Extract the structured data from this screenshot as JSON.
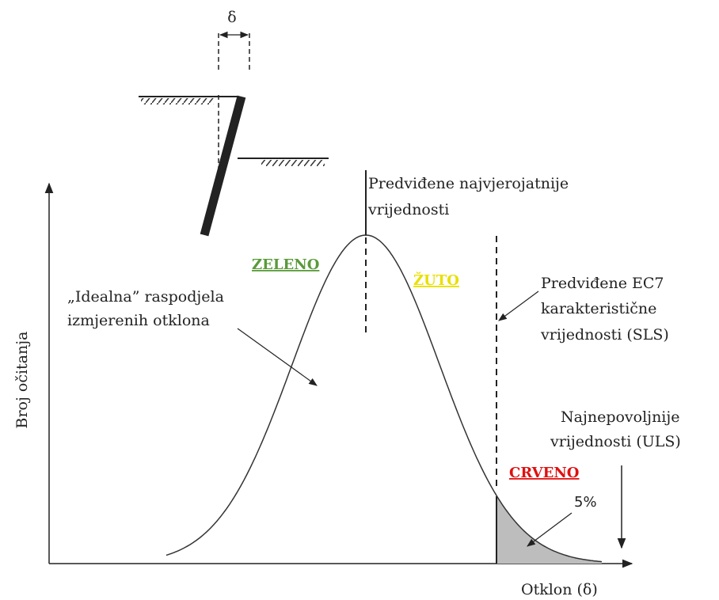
{
  "wall": {
    "delta": "δ"
  },
  "most_likely": [
    "Predviđene najvjerojatnije",
    "vrijednosti"
  ],
  "zones": {
    "green": "ZELENO",
    "yellow": "ŽUTO",
    "red": "CRVENO"
  },
  "ideal": [
    "„Idealna” raspodjela",
    "izmjerenih otklona"
  ],
  "sls": [
    "Predviđene EC7",
    "karakteristične",
    "vrijednosti (SLS)"
  ],
  "uls": [
    "Najnepovoljnije",
    "vrijednosti (ULS)"
  ],
  "tail": "5%",
  "x_axis": "Otklon (δ)",
  "y_axis": "Broj očitanja"
}
